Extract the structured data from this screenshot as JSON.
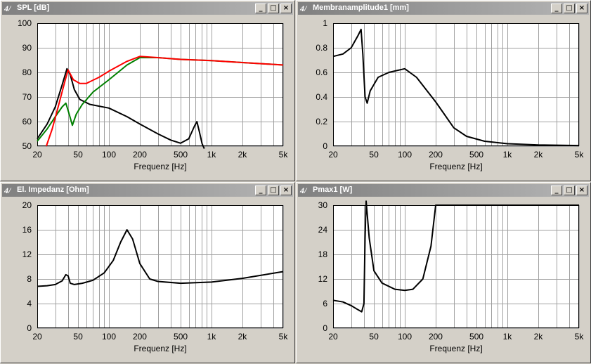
{
  "windows": [
    {
      "id": "spl",
      "title": "SPL [dB]",
      "icon": "app-logo-icon",
      "buttons": {
        "minimize": "_",
        "maximize": "□",
        "close": "×"
      },
      "chart_data": {
        "type": "line",
        "xscale": "log",
        "xlim": [
          20,
          5000
        ],
        "ylim": [
          50,
          100
        ],
        "xticks": [
          20,
          50,
          100,
          200,
          500,
          1000,
          2000,
          5000
        ],
        "xtick_labels": [
          "20",
          "50",
          "100",
          "200",
          "500",
          "1k",
          "2k",
          "5k"
        ],
        "yticks": [
          50,
          60,
          70,
          80,
          90,
          100
        ],
        "ytick_labels": [
          "50",
          "60",
          "70",
          "80",
          "90",
          "100"
        ],
        "xlabel": "Frequenz [Hz]",
        "grid": true,
        "series": [
          {
            "color": "#000000",
            "points": [
              [
                20,
                53
              ],
              [
                25,
                59
              ],
              [
                30,
                66
              ],
              [
                35,
                75
              ],
              [
                39,
                81.5
              ],
              [
                42,
                79
              ],
              [
                46,
                73
              ],
              [
                52,
                69
              ],
              [
                65,
                67
              ],
              [
                100,
                65.5
              ],
              [
                150,
                62
              ],
              [
                200,
                59
              ],
              [
                300,
                55
              ],
              [
                400,
                52.5
              ],
              [
                500,
                51.2
              ],
              [
                600,
                53
              ],
              [
                680,
                58
              ],
              [
                720,
                60
              ],
              [
                760,
                56
              ],
              [
                810,
                51
              ],
              [
                850,
                49
              ]
            ]
          },
          {
            "color": "#008000",
            "points": [
              [
                20,
                52
              ],
              [
                25,
                57
              ],
              [
                30,
                62
              ],
              [
                35,
                66
              ],
              [
                38,
                67.5
              ],
              [
                41,
                63
              ],
              [
                44,
                58.5
              ],
              [
                48,
                63
              ],
              [
                55,
                67
              ],
              [
                70,
                72
              ],
              [
                100,
                77
              ],
              [
                150,
                83
              ],
              [
                200,
                86
              ],
              [
                300,
                86
              ],
              [
                500,
                85.3
              ],
              [
                1000,
                84.8
              ],
              [
                2000,
                84
              ],
              [
                5000,
                83
              ]
            ]
          },
          {
            "color": "#ff0000",
            "points": [
              [
                24.5,
                50
              ],
              [
                28,
                57
              ],
              [
                32,
                66
              ],
              [
                37,
                76
              ],
              [
                40,
                81
              ],
              [
                45,
                77
              ],
              [
                52,
                75.5
              ],
              [
                60,
                75.5
              ],
              [
                80,
                78
              ],
              [
                100,
                80.5
              ],
              [
                150,
                84.5
              ],
              [
                200,
                86.5
              ],
              [
                300,
                86
              ],
              [
                500,
                85.3
              ],
              [
                1000,
                84.8
              ],
              [
                2000,
                84
              ],
              [
                5000,
                83
              ]
            ]
          }
        ]
      }
    },
    {
      "id": "amp",
      "title": "Membranamplitude1 [mm]",
      "icon": "app-logo-icon",
      "buttons": {
        "minimize": "_",
        "maximize": "□",
        "close": "×"
      },
      "chart_data": {
        "type": "line",
        "xscale": "log",
        "xlim": [
          20,
          5000
        ],
        "ylim": [
          0,
          1
        ],
        "xticks": [
          20,
          50,
          100,
          200,
          500,
          1000,
          2000,
          5000
        ],
        "xtick_labels": [
          "20",
          "50",
          "100",
          "200",
          "500",
          "1k",
          "2k",
          "5k"
        ],
        "yticks": [
          0,
          0.2,
          0.4,
          0.6,
          0.8,
          1
        ],
        "ytick_labels": [
          "0",
          "0.2",
          "0.4",
          "0.6",
          "0.8",
          "1"
        ],
        "xlabel": "Frequenz [Hz]",
        "grid": true,
        "series": [
          {
            "color": "#000000",
            "points": [
              [
                20,
                0.73
              ],
              [
                25,
                0.75
              ],
              [
                30,
                0.8
              ],
              [
                35,
                0.9
              ],
              [
                37.5,
                0.95
              ],
              [
                39,
                0.75
              ],
              [
                41,
                0.4
              ],
              [
                43,
                0.35
              ],
              [
                46,
                0.45
              ],
              [
                55,
                0.56
              ],
              [
                70,
                0.6
              ],
              [
                100,
                0.63
              ],
              [
                130,
                0.56
              ],
              [
                200,
                0.36
              ],
              [
                300,
                0.15
              ],
              [
                400,
                0.08
              ],
              [
                600,
                0.04
              ],
              [
                1000,
                0.02
              ],
              [
                2000,
                0.01
              ],
              [
                5000,
                0.005
              ]
            ]
          }
        ]
      }
    },
    {
      "id": "imp",
      "title": "El. Impedanz [Ohm]",
      "icon": "app-logo-icon",
      "buttons": {
        "minimize": "_",
        "maximize": "□",
        "close": "×"
      },
      "chart_data": {
        "type": "line",
        "xscale": "log",
        "xlim": [
          20,
          5000
        ],
        "ylim": [
          0,
          20
        ],
        "xticks": [
          20,
          50,
          100,
          200,
          500,
          1000,
          2000,
          5000
        ],
        "xtick_labels": [
          "20",
          "50",
          "100",
          "200",
          "500",
          "1k",
          "2k",
          "5k"
        ],
        "yticks": [
          0,
          4,
          8,
          12,
          16,
          20
        ],
        "ytick_labels": [
          "0",
          "4",
          "8",
          "12",
          "16",
          "20"
        ],
        "xlabel": "Frequenz [Hz]",
        "grid": true,
        "series": [
          {
            "color": "#000000",
            "points": [
              [
                20,
                6.8
              ],
              [
                25,
                6.9
              ],
              [
                30,
                7.1
              ],
              [
                35,
                7.7
              ],
              [
                38,
                8.7
              ],
              [
                40,
                8.5
              ],
              [
                42,
                7.3
              ],
              [
                46,
                7.1
              ],
              [
                55,
                7.3
              ],
              [
                70,
                7.8
              ],
              [
                90,
                9
              ],
              [
                110,
                11
              ],
              [
                130,
                14
              ],
              [
                150,
                16
              ],
              [
                170,
                14.5
              ],
              [
                200,
                10.5
              ],
              [
                250,
                8
              ],
              [
                300,
                7.6
              ],
              [
                500,
                7.3
              ],
              [
                1000,
                7.5
              ],
              [
                2000,
                8.1
              ],
              [
                5000,
                9.2
              ]
            ]
          }
        ]
      }
    },
    {
      "id": "pmax",
      "title": "Pmax1 [W]",
      "icon": "app-logo-icon",
      "buttons": {
        "minimize": "_",
        "maximize": "□",
        "close": "×"
      },
      "chart_data": {
        "type": "line",
        "xscale": "log",
        "xlim": [
          20,
          5000
        ],
        "ylim": [
          0,
          30
        ],
        "xticks": [
          20,
          50,
          100,
          200,
          500,
          1000,
          2000,
          5000
        ],
        "xtick_labels": [
          "20",
          "50",
          "100",
          "200",
          "500",
          "1k",
          "2k",
          "5k"
        ],
        "yticks": [
          0,
          6,
          12,
          18,
          24,
          30
        ],
        "ytick_labels": [
          "0",
          "6",
          "12",
          "18",
          "24",
          "30"
        ],
        "xlabel": "Frequenz [Hz]",
        "grid": true,
        "series": [
          {
            "color": "#000000",
            "points": [
              [
                20,
                6.8
              ],
              [
                25,
                6.4
              ],
              [
                30,
                5.5
              ],
              [
                35,
                4.5
              ],
              [
                38,
                4
              ],
              [
                40,
                6
              ],
              [
                41,
                22
              ],
              [
                42,
                31
              ],
              [
                45,
                22
              ],
              [
                50,
                14
              ],
              [
                60,
                11
              ],
              [
                80,
                9.5
              ],
              [
                100,
                9.2
              ],
              [
                120,
                9.5
              ],
              [
                150,
                12
              ],
              [
                180,
                20
              ],
              [
                200,
                30
              ],
              [
                5000,
                30
              ]
            ]
          }
        ]
      }
    }
  ]
}
